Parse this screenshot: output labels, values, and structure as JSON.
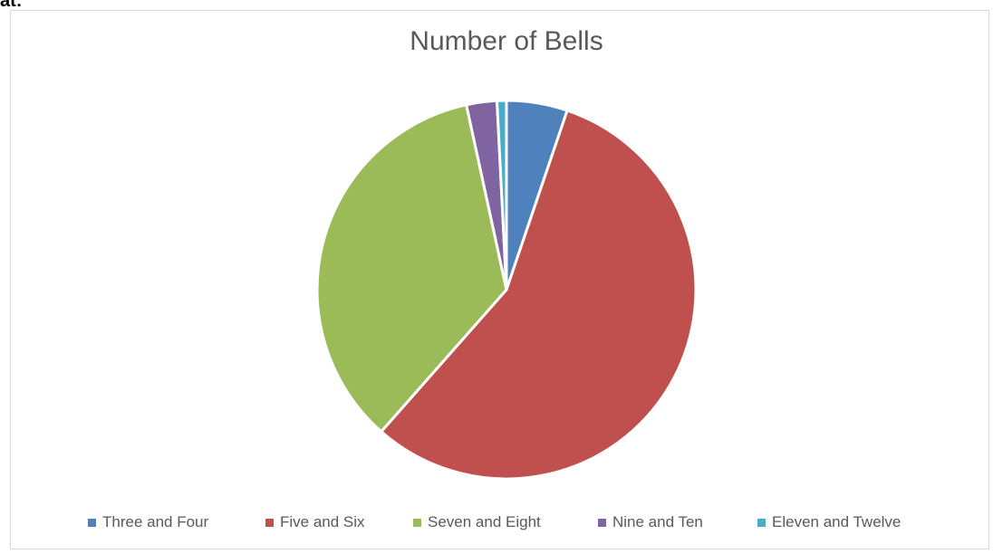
{
  "header_fragment": "at:",
  "chart_data": {
    "type": "pie",
    "title": "Number of Bells",
    "categories": [
      "Three and Four",
      "Five and Six",
      "Seven and Eight",
      "Nine and Ten",
      "Eleven and Twelve"
    ],
    "values": [
      5.2,
      56.3,
      35.1,
      2.6,
      0.8
    ],
    "colors": [
      "#4f81bd",
      "#c0504d",
      "#9bbb59",
      "#8064a2",
      "#4bacc6"
    ],
    "legend_position": "bottom"
  }
}
